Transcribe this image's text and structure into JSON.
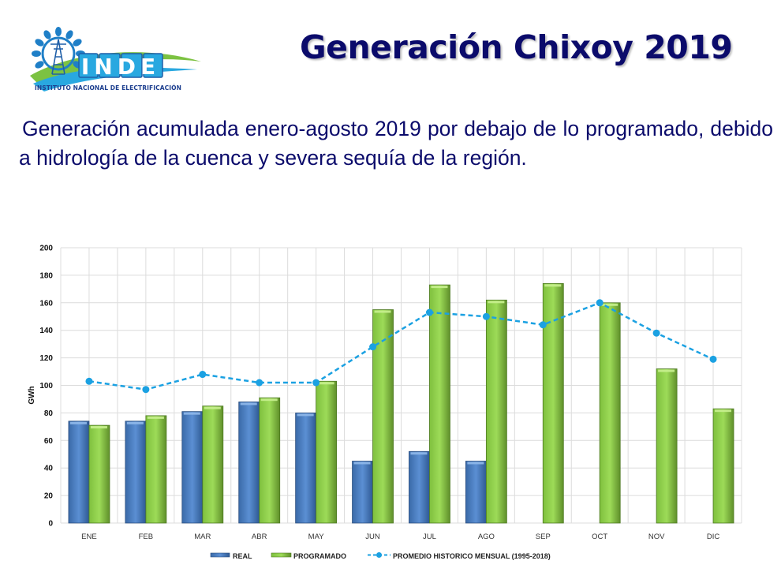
{
  "header": {
    "logo": {
      "name": "INDE",
      "caption": "INSTITUTO NACIONAL DE ELECTRIFICACIÓN"
    },
    "title": "Generación Chixoy 2019"
  },
  "subtitle": "Generación acumulada enero-agosto 2019 por debajo de lo programado, debido a hidrología  de la cuenca y severa sequía de la región.",
  "colors": {
    "title": "#0b0b6b",
    "real": "#4f81bd",
    "programado": "#92d050",
    "promedio": "#1ba1e2"
  },
  "chart_data": {
    "type": "bar",
    "title": "",
    "xlabel": "",
    "ylabel": "GWh",
    "ylim": [
      0,
      200
    ],
    "yticks": [
      0,
      20,
      40,
      60,
      80,
      100,
      120,
      140,
      160,
      180,
      200
    ],
    "grid": true,
    "legend_position": "bottom",
    "categories": [
      "ENE",
      "FEB",
      "MAR",
      "ABR",
      "MAY",
      "JUN",
      "JUL",
      "AGO",
      "SEP",
      "OCT",
      "NOV",
      "DIC"
    ],
    "series": [
      {
        "name": "REAL",
        "type": "bar",
        "values": [
          74,
          74,
          81,
          88,
          80,
          45,
          52,
          45,
          null,
          null,
          null,
          null
        ]
      },
      {
        "name": "PROGRAMADO",
        "type": "bar",
        "values": [
          71,
          78,
          85,
          91,
          103,
          155,
          173,
          162,
          174,
          160,
          112,
          83
        ]
      },
      {
        "name": "PROMEDIO HISTORICO MENSUAL (1995-2018)",
        "type": "line",
        "style": "dashed-with-markers",
        "values": [
          103,
          97,
          108,
          102,
          102,
          128,
          153,
          150,
          144,
          160,
          138,
          119
        ]
      }
    ]
  }
}
